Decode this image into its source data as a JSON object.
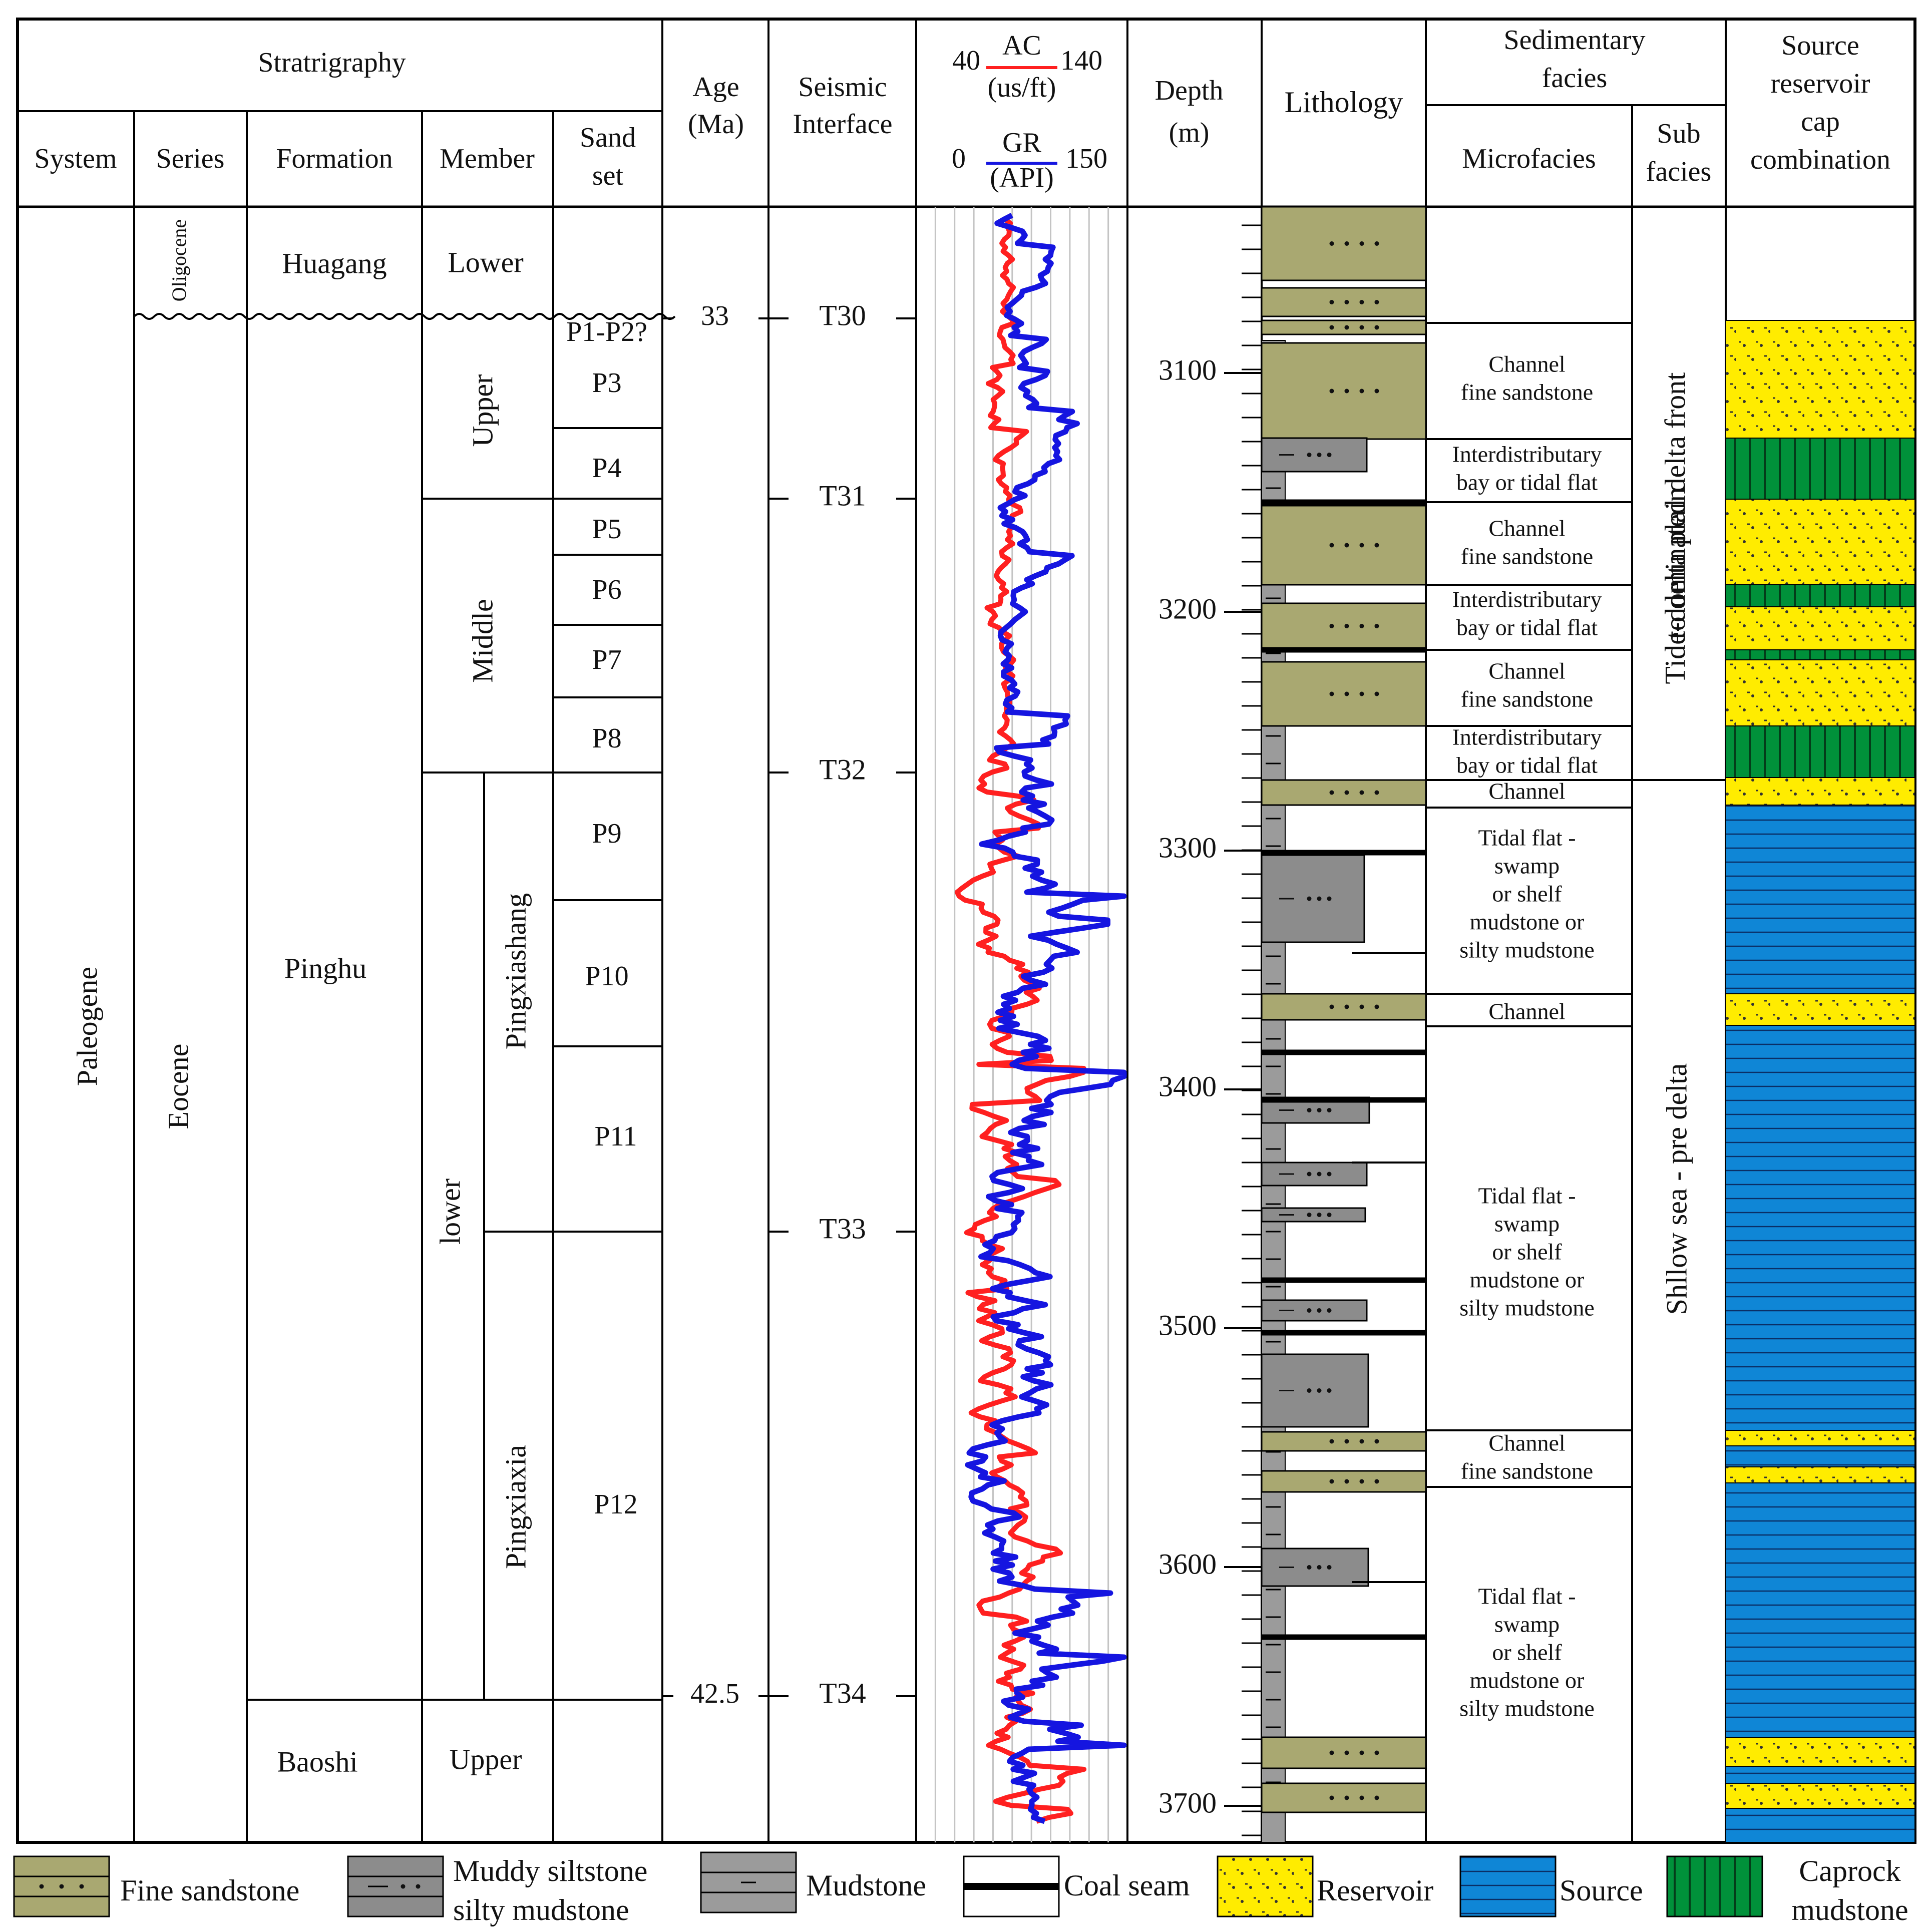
{
  "headers": {
    "stratigraphy": "Stratrigraphy",
    "system": "System",
    "series": "Series",
    "formation": "Formation",
    "member": "Member",
    "sand_set": [
      "Sand",
      "set"
    ],
    "age": [
      "Age",
      "(Ma)"
    ],
    "seismic": [
      "Seismic",
      "Interface"
    ],
    "ac": {
      "name": "AC",
      "min": "40",
      "max": "140",
      "unit": "(us/ft)"
    },
    "gr": {
      "name": "GR",
      "min": "0",
      "max": "150",
      "unit": "(API)"
    },
    "depth": [
      "Depth",
      "(m)"
    ],
    "lithology": "Lithology",
    "sedimentary_facies": [
      "Sedimentary",
      "facies"
    ],
    "microfacies": "Microfacies",
    "subfacies": [
      "Sub",
      "facies"
    ],
    "src": [
      "Source",
      "reservoir",
      "cap",
      "combination"
    ]
  },
  "system": "Paleogene",
  "series": {
    "upper": "Oligocene",
    "lower": "Eocene"
  },
  "formations": {
    "top": "Huagang",
    "middle": "Pinghu",
    "bottom": "Baoshi"
  },
  "members": {
    "top": "Lower",
    "upper": "Upper",
    "middle": "Middle",
    "lower": "lower",
    "bottom": "Upper"
  },
  "submembers": {
    "upper": "Pingxiashang",
    "lower": "Pingxiaxia"
  },
  "sand_sets": [
    "P1-P2?",
    "P3",
    "P4",
    "P5",
    "P6",
    "P7",
    "P8",
    "P9",
    "P10",
    "P11",
    "P12"
  ],
  "ages": [
    "33",
    "42.5"
  ],
  "seismic_interfaces": [
    "T30",
    "T31",
    "T32",
    "T33",
    "T34"
  ],
  "depth_ticks": [
    "3100",
    "3200",
    "3300",
    "3400",
    "3500",
    "3600",
    "3700"
  ],
  "microfacies": [
    [
      "Channel",
      "fine sandstone"
    ],
    [
      "Interdistributary",
      "bay or tidal flat"
    ],
    [
      "Channel",
      "fine sandstone"
    ],
    [
      "Interdistributary",
      "bay or tidal flat"
    ],
    [
      "Channel",
      "fine sandstone"
    ],
    [
      "Interdistributary",
      "bay or tidal flat"
    ],
    [
      "Channel"
    ],
    [
      "Tidal flat -",
      "swamp",
      "or shelf",
      "mudstone or",
      "silty mudstone"
    ],
    [
      "Channel"
    ],
    [
      "Tidal flat -",
      "swamp",
      "or shelf",
      "mudstone or",
      "silty mudstone"
    ],
    [
      "Channel",
      "fine sandstone"
    ],
    [
      "Tidal flat -",
      "swamp",
      "or shelf",
      "mudstone or",
      "silty mudstone"
    ]
  ],
  "subfacies": {
    "upper": [
      "Tide-dominated delta front",
      "to delta plain"
    ],
    "lower": "Shllow sea   -   pre delta"
  },
  "legend": [
    {
      "kind": "fine-sandstone",
      "label": [
        "Fine sandstone"
      ]
    },
    {
      "kind": "muddy-siltstone",
      "label": [
        "Muddy siltstone",
        "silty mudstone"
      ]
    },
    {
      "kind": "mudstone",
      "label": [
        "Mudstone"
      ]
    },
    {
      "kind": "coal-seam",
      "label": [
        "Coal seam"
      ]
    },
    {
      "kind": "reservoir",
      "label": [
        "Reservoir"
      ]
    },
    {
      "kind": "source",
      "label": [
        "Source"
      ]
    },
    {
      "kind": "caprock",
      "label": [
        "Caprock",
        "mudstone"
      ]
    }
  ],
  "colors": {
    "sandstone": "#a9a871",
    "silt": "#8c8c8c",
    "mud": "#9b9b9b",
    "reservoir": "#ffec00",
    "source": "#0f86d6",
    "caprock": "#00913a",
    "ac": "#ff2020",
    "gr": "#1515e0"
  }
}
